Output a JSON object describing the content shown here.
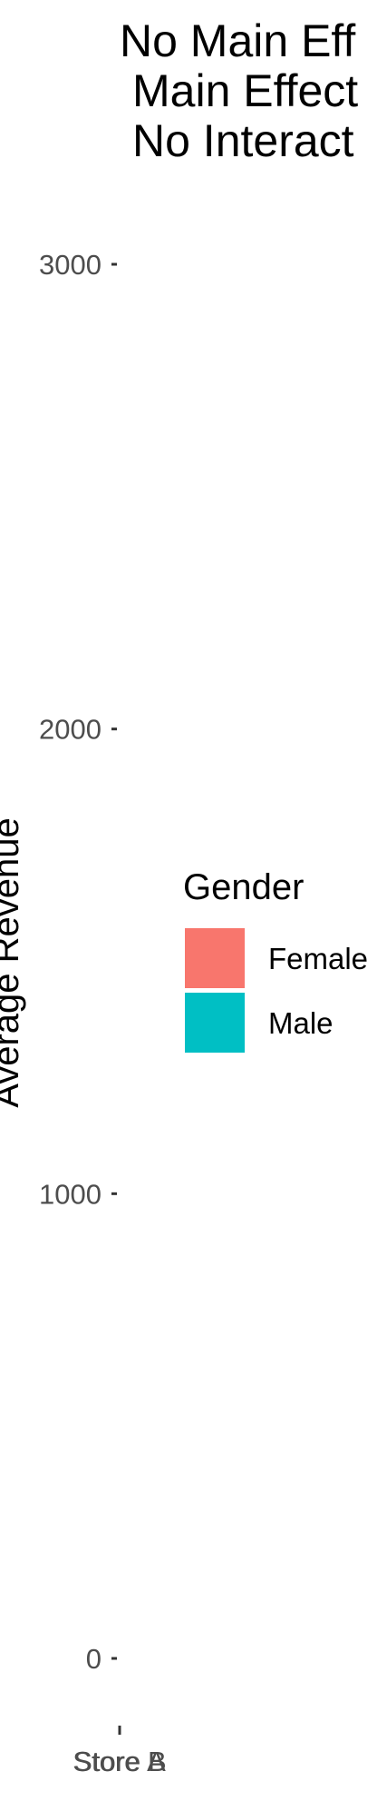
{
  "chart_data": {
    "type": "bar",
    "title": [
      "No Main Eff",
      "Main Effect",
      "No Interact"
    ],
    "ylabel": "Average Revenue",
    "xlabel": "",
    "categories": [
      "Store A",
      "Store B"
    ],
    "ylim": [
      0,
      3000
    ],
    "y_ticks": [
      {
        "value": 0,
        "label": "0"
      },
      {
        "value": 1000,
        "label": "1000"
      },
      {
        "value": 2000,
        "label": "2000"
      },
      {
        "value": 3000,
        "label": "3000"
      }
    ],
    "grid": false,
    "legend": {
      "title": "Gender",
      "placement": "right",
      "items": [
        {
          "label": "Female",
          "color": "#F8766D"
        },
        {
          "label": "Male",
          "color": "#00BFC4"
        }
      ]
    }
  }
}
